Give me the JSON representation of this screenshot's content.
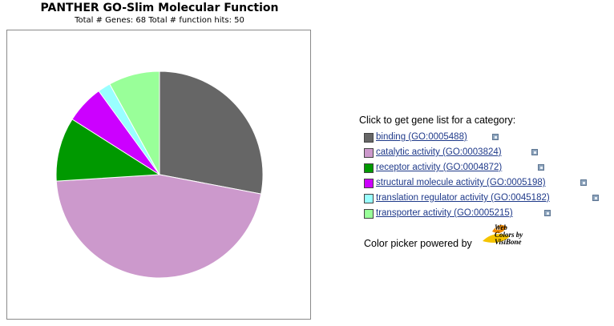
{
  "chart_data": {
    "type": "pie",
    "title": "PANTHER GO-Slim Molecular Function",
    "subtitle": "Total # Genes: 68    Total # function hits: 50",
    "slices": [
      {
        "label": "binding (GO:0005488)",
        "value": 14,
        "color": "#666666"
      },
      {
        "label": "catalytic activity (GO:0003824)",
        "value": 23,
        "color": "#cc99cc"
      },
      {
        "label": "receptor activity (GO:0004872)",
        "value": 5,
        "color": "#009900"
      },
      {
        "label": "structural molecule activity (GO:0005198)",
        "value": 3,
        "color": "#cc00ff"
      },
      {
        "label": "translation regulator activity (GO:0045182)",
        "value": 1,
        "color": "#99ffff"
      },
      {
        "label": "transporter activity (GO:0005215)",
        "value": 4,
        "color": "#99ff99"
      }
    ]
  },
  "legend": {
    "heading": "Click to get gene list for a category:"
  },
  "footer": {
    "powered_by": "Color picker powered by",
    "logo_text_line1": "Web",
    "logo_text_line2": "Colors by",
    "logo_text_line3": "VisiBone"
  },
  "icons": {
    "legend_link": "external-link-icon",
    "logo": "visibone-logo-icon"
  }
}
